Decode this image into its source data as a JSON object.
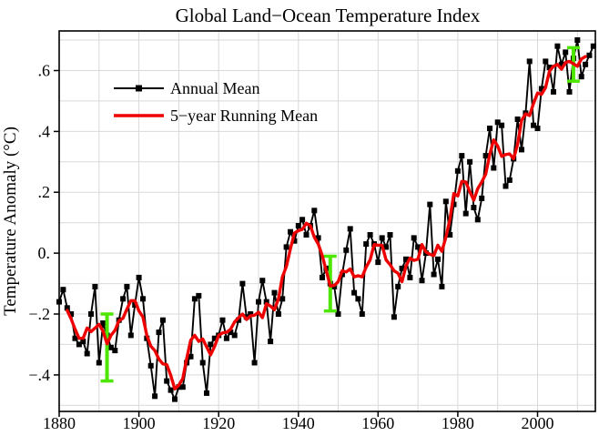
{
  "chart_data": {
    "type": "line",
    "title": "Global Land−Ocean Temperature Index",
    "ylabel": "Temperature Anomaly (°C)",
    "xlabel": "",
    "xlim": [
      1880,
      2014.5
    ],
    "ylim": [
      -0.52,
      0.73
    ],
    "x_tick_years": [
      1880,
      1900,
      1920,
      1940,
      1960,
      1980,
      2000
    ],
    "x_tick_labels": [
      "1880",
      "1900",
      "1920",
      "1940",
      "1960",
      "1980",
      "2000"
    ],
    "y_tick_values": [
      -0.4,
      -0.2,
      0,
      0.2,
      0.4,
      0.6
    ],
    "y_tick_labels": [
      "−.4",
      "−.2",
      "0.",
      ".2",
      ".4",
      ".6"
    ],
    "grid": {
      "show": true,
      "x_step_years": 10,
      "y_step": 0.1,
      "color": "#d9d9d9"
    },
    "legend": {
      "position": "upper-left",
      "entries": [
        {
          "label": "Annual Mean",
          "color": "#000000",
          "marker": "square"
        },
        {
          "label": "5−year Running Mean",
          "color": "#ee0000",
          "marker": "none"
        }
      ]
    },
    "series": [
      {
        "name": "Annual Mean",
        "style": "line+square-markers",
        "color": "#000000",
        "x_start_year": 1880,
        "x_step": 1,
        "values": [
          -0.16,
          -0.12,
          -0.18,
          -0.2,
          -0.28,
          -0.3,
          -0.29,
          -0.33,
          -0.2,
          -0.11,
          -0.36,
          -0.23,
          -0.27,
          -0.31,
          -0.32,
          -0.22,
          -0.15,
          -0.11,
          -0.27,
          -0.17,
          -0.08,
          -0.15,
          -0.28,
          -0.37,
          -0.47,
          -0.26,
          -0.22,
          -0.42,
          -0.45,
          -0.48,
          -0.44,
          -0.44,
          -0.36,
          -0.34,
          -0.15,
          -0.14,
          -0.36,
          -0.46,
          -0.3,
          -0.28,
          -0.27,
          -0.22,
          -0.28,
          -0.26,
          -0.27,
          -0.22,
          -0.1,
          -0.21,
          -0.2,
          -0.36,
          -0.16,
          -0.09,
          -0.16,
          -0.29,
          -0.13,
          -0.2,
          -0.15,
          0.02,
          0.07,
          0.04,
          0.09,
          0.11,
          0.06,
          0.09,
          0.14,
          0.05,
          -0.08,
          -0.05,
          -0.1,
          -0.11,
          -0.2,
          -0.07,
          0.01,
          0.08,
          -0.13,
          -0.15,
          -0.2,
          0.03,
          0.06,
          0.03,
          -0.03,
          0.05,
          0.02,
          0.06,
          -0.21,
          -0.11,
          -0.05,
          -0.02,
          -0.08,
          0.05,
          0.02,
          -0.09,
          0.0,
          0.16,
          -0.07,
          -0.02,
          -0.11,
          0.17,
          0.06,
          0.16,
          0.27,
          0.32,
          0.13,
          0.3,
          0.15,
          0.11,
          0.18,
          0.32,
          0.41,
          0.28,
          0.43,
          0.42,
          0.22,
          0.24,
          0.31,
          0.44,
          0.34,
          0.46,
          0.63,
          0.42,
          0.41,
          0.54,
          0.63,
          0.61,
          0.53,
          0.68,
          0.62,
          0.66,
          0.53,
          0.64,
          0.7,
          0.58,
          0.62,
          0.65,
          0.68
        ]
      },
      {
        "name": "5−year Running Mean",
        "style": "line",
        "color": "#ee0000",
        "derivation": "centered 5-year running mean of the Annual Mean series (plotted 1882–2012)"
      }
    ],
    "uncertainty_bars": {
      "color": "#4de600",
      "description": "green uncertainty bars",
      "items": [
        {
          "year": 1892,
          "center": -0.31,
          "half_height": 0.11
        },
        {
          "year": 1948,
          "center": -0.1,
          "half_height": 0.09
        },
        {
          "year": 2009,
          "center": 0.62,
          "half_height": 0.055
        }
      ]
    }
  }
}
